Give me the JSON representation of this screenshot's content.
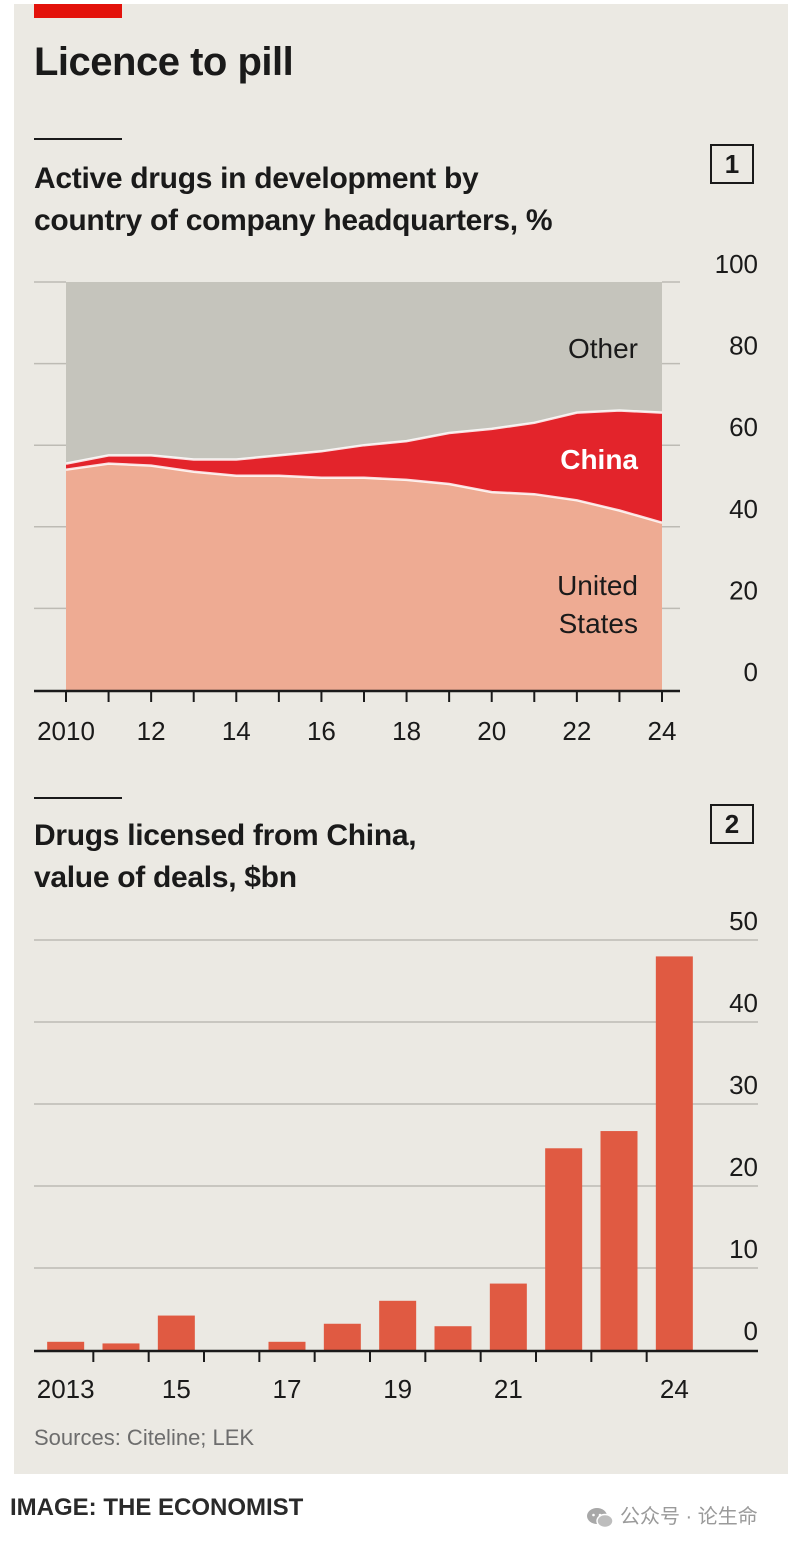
{
  "headline": "Licence to pill",
  "chart_data": [
    {
      "type": "area",
      "stacked": true,
      "number": "1",
      "title": "Active drugs in development by country of company headquarters, %",
      "subtitle_lines": [
        "Active drugs in development by",
        "country of company headquarters, %"
      ],
      "x": [
        2010,
        2011,
        2012,
        2013,
        2014,
        2015,
        2016,
        2017,
        2018,
        2019,
        2020,
        2021,
        2022,
        2023,
        2024
      ],
      "x_ticks": [
        2010,
        2012,
        2014,
        2016,
        2018,
        2020,
        2022,
        2024
      ],
      "x_tick_labels": [
        "2010",
        "12",
        "14",
        "16",
        "18",
        "20",
        "22",
        "24"
      ],
      "y_ticks": [
        0,
        20,
        40,
        60,
        80,
        100
      ],
      "y_tick_labels": [
        "0",
        "20",
        "40",
        "60",
        "80",
        "100"
      ],
      "ylim": [
        0,
        100
      ],
      "series": [
        {
          "name": "United States",
          "label_lines": [
            "United",
            "States"
          ],
          "color": "#eeab93",
          "values": [
            54,
            55.5,
            55,
            53.5,
            52.5,
            52.5,
            52,
            52,
            51.5,
            50.5,
            48.5,
            48,
            46.5,
            44,
            41
          ]
        },
        {
          "name": "China",
          "label_lines": [
            "China"
          ],
          "color": "#e3242b",
          "values": [
            1.5,
            2,
            2.5,
            3,
            4,
            5,
            6.5,
            8,
            9.5,
            12.5,
            15.5,
            17.5,
            21.5,
            24.5,
            27
          ]
        },
        {
          "name": "Other",
          "label_lines": [
            "Other"
          ],
          "color": "#c5c4bc",
          "values": [
            44.5,
            42.5,
            42.5,
            43.5,
            43.5,
            42.5,
            41.5,
            40,
            39,
            37,
            36,
            34.5,
            32,
            31.5,
            32
          ]
        }
      ]
    },
    {
      "type": "bar",
      "number": "2",
      "title": "Drugs licensed from China, value of deals, $bn",
      "subtitle_lines": [
        "Drugs licensed from China,",
        "value of deals, $bn"
      ],
      "categories": [
        "2013",
        "2014",
        "2015",
        "2016",
        "2017",
        "2018",
        "2019",
        "2020",
        "2021",
        "2022",
        "2023",
        "2024"
      ],
      "values": [
        1,
        0.8,
        4.2,
        0,
        1,
        3.2,
        6,
        2.9,
        8.1,
        24.6,
        26.7,
        48
      ],
      "x_tick_labels": [
        "2013",
        "",
        "15",
        "",
        "17",
        "",
        "19",
        "",
        "21",
        "",
        "",
        "24"
      ],
      "y_ticks": [
        0,
        10,
        20,
        30,
        40,
        50
      ],
      "y_tick_labels": [
        "0",
        "10",
        "20",
        "30",
        "40",
        "50"
      ],
      "ylim": [
        0,
        50
      ],
      "color": "#e05a42"
    }
  ],
  "source": "Sources: Citeline; LEK",
  "credit": "IMAGE: THE ECONOMIST",
  "watermark": "公众号 · 论生命"
}
